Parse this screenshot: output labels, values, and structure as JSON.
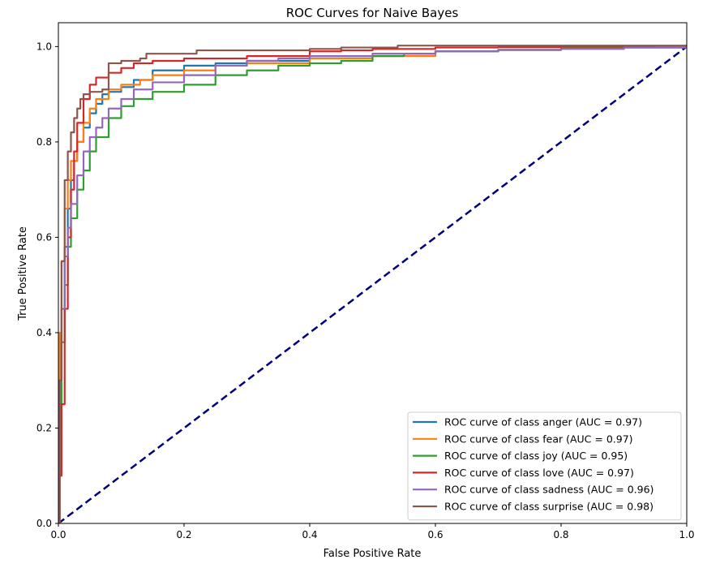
{
  "chart_data": {
    "type": "line",
    "title": "ROC Curves for Naive Bayes",
    "xlabel": "False Positive Rate",
    "ylabel": "True Positive Rate",
    "xlim": [
      0.0,
      1.0
    ],
    "ylim": [
      0.0,
      1.05
    ],
    "xticks": [
      0.0,
      0.2,
      0.4,
      0.6,
      0.8,
      1.0
    ],
    "xtick_labels": [
      "0.0",
      "0.2",
      "0.4",
      "0.6",
      "0.8",
      "1.0"
    ],
    "yticks": [
      0.0,
      0.2,
      0.4,
      0.6,
      0.8,
      1.0
    ],
    "ytick_labels": [
      "0.0",
      "0.2",
      "0.4",
      "0.6",
      "0.8",
      "1.0"
    ],
    "grid": false,
    "legend_position": "lower-right",
    "diagonal": {
      "color": "#000080",
      "style": "dashed",
      "x": [
        0.0,
        1.0
      ],
      "y": [
        0.0,
        1.0
      ]
    },
    "series": [
      {
        "name": "ROC curve of class anger (AUC = 0.97)",
        "color": "#1f77b4",
        "x": [
          0.0,
          0.002,
          0.005,
          0.01,
          0.015,
          0.02,
          0.025,
          0.03,
          0.04,
          0.05,
          0.06,
          0.07,
          0.08,
          0.1,
          0.12,
          0.15,
          0.2,
          0.25,
          0.3,
          0.4,
          0.5,
          0.6,
          0.7,
          0.8,
          0.9,
          1.0
        ],
        "y": [
          0.0,
          0.25,
          0.45,
          0.58,
          0.66,
          0.72,
          0.76,
          0.8,
          0.83,
          0.86,
          0.88,
          0.9,
          0.905,
          0.915,
          0.93,
          0.95,
          0.96,
          0.965,
          0.97,
          0.98,
          0.985,
          0.99,
          0.993,
          0.996,
          0.998,
          1.0
        ]
      },
      {
        "name": "ROC curve of class fear (AUC = 0.97)",
        "color": "#ff7f0e",
        "x": [
          0.0,
          0.002,
          0.005,
          0.01,
          0.015,
          0.02,
          0.03,
          0.04,
          0.05,
          0.06,
          0.08,
          0.1,
          0.13,
          0.15,
          0.2,
          0.25,
          0.3,
          0.4,
          0.5,
          0.6,
          0.7,
          0.8,
          0.9,
          1.0
        ],
        "y": [
          0.0,
          0.4,
          0.55,
          0.66,
          0.72,
          0.76,
          0.8,
          0.84,
          0.87,
          0.89,
          0.91,
          0.92,
          0.93,
          0.94,
          0.95,
          0.96,
          0.965,
          0.975,
          0.98,
          0.99,
          0.993,
          0.996,
          0.998,
          1.0
        ]
      },
      {
        "name": "ROC curve of class joy (AUC = 0.95)",
        "color": "#2ca02c",
        "x": [
          0.0,
          0.002,
          0.005,
          0.01,
          0.015,
          0.02,
          0.03,
          0.04,
          0.05,
          0.06,
          0.08,
          0.1,
          0.12,
          0.15,
          0.2,
          0.25,
          0.3,
          0.35,
          0.4,
          0.45,
          0.5,
          0.55,
          0.6,
          0.7,
          0.8,
          0.9,
          1.0
        ],
        "y": [
          0.0,
          0.2,
          0.38,
          0.5,
          0.58,
          0.64,
          0.7,
          0.74,
          0.78,
          0.81,
          0.85,
          0.875,
          0.89,
          0.905,
          0.92,
          0.94,
          0.95,
          0.96,
          0.965,
          0.97,
          0.98,
          0.985,
          0.99,
          0.993,
          0.996,
          0.998,
          1.0
        ]
      },
      {
        "name": "ROC curve of class love (AUC = 0.97)",
        "color": "#d62728",
        "x": [
          0.0,
          0.002,
          0.005,
          0.01,
          0.015,
          0.02,
          0.025,
          0.03,
          0.04,
          0.05,
          0.06,
          0.08,
          0.1,
          0.12,
          0.15,
          0.2,
          0.3,
          0.4,
          0.45,
          0.5,
          0.6,
          0.7,
          0.8,
          0.9,
          1.0
        ],
        "y": [
          0.0,
          0.1,
          0.25,
          0.45,
          0.6,
          0.7,
          0.78,
          0.84,
          0.89,
          0.92,
          0.935,
          0.945,
          0.955,
          0.965,
          0.97,
          0.975,
          0.98,
          0.99,
          0.992,
          0.995,
          0.998,
          0.999,
          1.0,
          1.0,
          1.0
        ]
      },
      {
        "name": "ROC curve of class sadness (AUC = 0.96)",
        "color": "#9467bd",
        "x": [
          0.0,
          0.002,
          0.005,
          0.01,
          0.015,
          0.02,
          0.03,
          0.04,
          0.05,
          0.06,
          0.07,
          0.08,
          0.1,
          0.12,
          0.15,
          0.2,
          0.25,
          0.3,
          0.35,
          0.4,
          0.5,
          0.6,
          0.7,
          0.8,
          0.9,
          0.95,
          1.0
        ],
        "y": [
          0.0,
          0.3,
          0.45,
          0.56,
          0.62,
          0.67,
          0.73,
          0.78,
          0.81,
          0.83,
          0.85,
          0.87,
          0.89,
          0.91,
          0.925,
          0.94,
          0.96,
          0.97,
          0.975,
          0.98,
          0.985,
          0.99,
          0.993,
          0.995,
          0.998,
          0.999,
          1.0
        ]
      },
      {
        "name": "ROC curve of class surprise (AUC = 0.98)",
        "color": "#8c564b",
        "x": [
          0.0,
          0.002,
          0.005,
          0.01,
          0.015,
          0.02,
          0.025,
          0.03,
          0.035,
          0.04,
          0.05,
          0.06,
          0.07,
          0.08,
          0.1,
          0.13,
          0.14,
          0.2,
          0.22,
          0.3,
          0.4,
          0.45,
          0.54,
          0.6,
          0.7,
          0.8,
          0.9,
          1.0
        ],
        "y": [
          0.0,
          0.3,
          0.55,
          0.72,
          0.78,
          0.82,
          0.85,
          0.87,
          0.89,
          0.9,
          0.905,
          0.905,
          0.91,
          0.965,
          0.97,
          0.975,
          0.985,
          0.985,
          0.992,
          0.992,
          0.995,
          0.998,
          1.002,
          1.002,
          1.002,
          1.002,
          1.002,
          1.002
        ]
      }
    ]
  }
}
